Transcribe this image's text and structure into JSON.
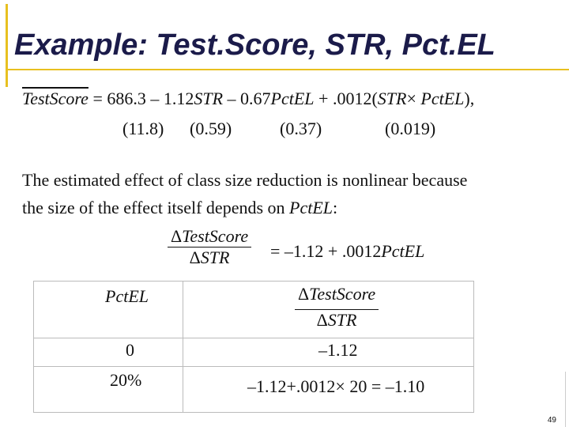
{
  "header": {
    "title": "Example: Test.Score, STR, Pct.EL"
  },
  "equation": {
    "parts": [
      "TestScore",
      " = 686.3 – 1.12",
      "STR",
      " – 0.67",
      "PctEL",
      " + .0012(",
      "STR",
      "× ",
      "PctEL",
      "),"
    ],
    "standard_errors": [
      "(11.8)",
      "(0.59)",
      "(0.37)",
      "(0.019)"
    ]
  },
  "paragraph": {
    "line1": "The estimated effect of class size reduction is nonlinear because",
    "line2": [
      "the size of the effect itself depends on ",
      "PctEL",
      ":"
    ]
  },
  "derivative": {
    "numerator": [
      "Δ",
      "TestScore"
    ],
    "denominator": [
      "Δ",
      "STR"
    ],
    "rhs": [
      "= –1.12 + .0012",
      "PctEL"
    ]
  },
  "table": {
    "header": [
      "PctEL",
      {
        "numerator": [
          "Δ",
          "TestScore"
        ],
        "denominator": [
          "Δ",
          "STR"
        ]
      }
    ],
    "rows": [
      [
        "0",
        "–1.12"
      ],
      [
        "20%",
        "–1.12+.0012× 20 = –1.10"
      ]
    ]
  },
  "footer": {
    "page_number": "49"
  }
}
